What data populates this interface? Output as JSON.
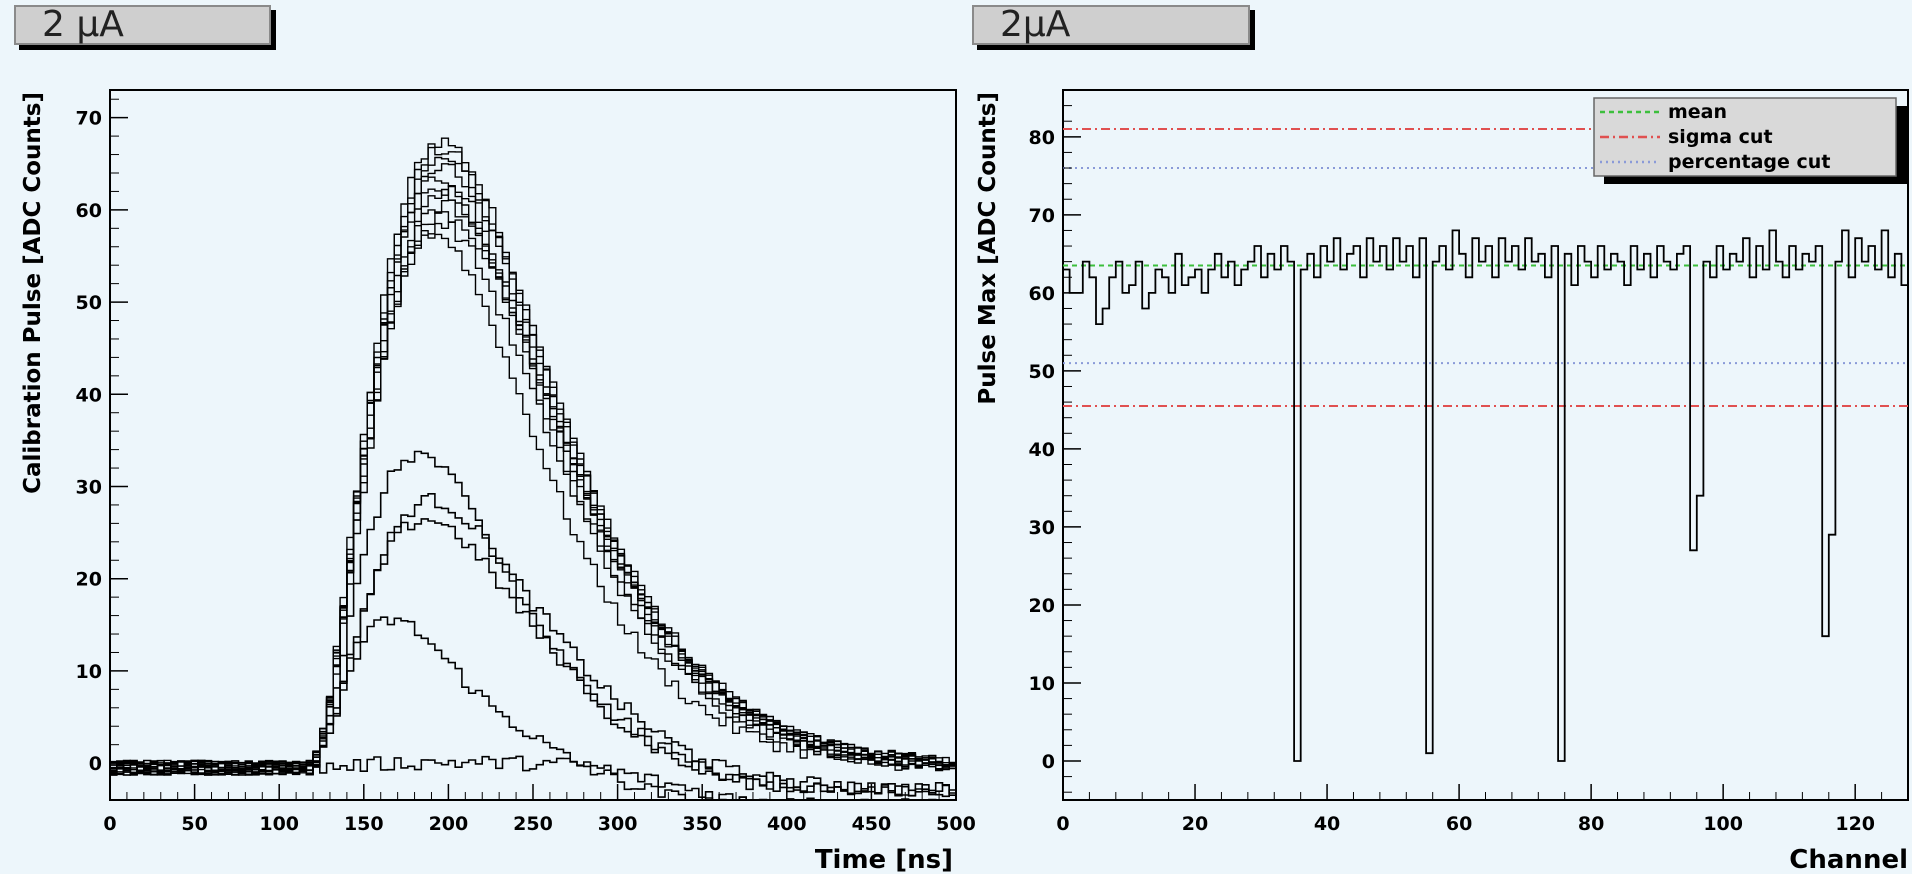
{
  "panels": {
    "left_label": "2 µA",
    "right_label": "2µA"
  },
  "chart_data": [
    {
      "type": "line",
      "title": "",
      "xlabel": "Time [ns]",
      "ylabel": "Calibration Pulse [ADC Counts]",
      "xlim": [
        0,
        500
      ],
      "ylim": [
        -4,
        73
      ],
      "xticks": [
        0,
        50,
        100,
        150,
        200,
        250,
        300,
        350,
        400,
        450,
        500
      ],
      "yticks": [
        0,
        10,
        20,
        30,
        40,
        50,
        60,
        70
      ],
      "grid": false,
      "line_color": "#000000",
      "series_description": "Overlaid calibration pulses (many channels). Bulk peaks ~58-68 ADC near 190 ns; a few low-amplitude channels; a few flat channels.",
      "pulse_model": {
        "baseline": -0.5,
        "onset_ns": 115,
        "peak_ns": 193
      },
      "series": [
        {
          "amplitude": 68
        },
        {
          "amplitude": 67
        },
        {
          "amplitude": 66
        },
        {
          "amplitude": 65
        },
        {
          "amplitude": 64
        },
        {
          "amplitude": 63
        },
        {
          "amplitude": 62
        },
        {
          "amplitude": 61
        },
        {
          "amplitude": 60
        },
        {
          "amplitude": 59
        },
        {
          "amplitude": 58
        },
        {
          "amplitude": 34,
          "peak_ns": 180
        },
        {
          "amplitude": 29,
          "peak_ns": 188
        },
        {
          "amplitude": 27,
          "peak_ns": 185
        },
        {
          "amplitude": 16,
          "peak_ns": 165
        },
        {
          "amplitude": 0.6,
          "peak_ns": 200
        }
      ]
    },
    {
      "type": "line",
      "title": "",
      "xlabel": "Channel",
      "ylabel": "Pulse Max [ADC Counts]",
      "xlim": [
        0,
        128
      ],
      "ylim": [
        -5,
        86
      ],
      "xticks": [
        0,
        20,
        40,
        60,
        80,
        100,
        120
      ],
      "yticks": [
        0,
        10,
        20,
        30,
        40,
        50,
        60,
        70,
        80
      ],
      "grid": false,
      "legend_position": "top-right",
      "legend": [
        {
          "label": "mean",
          "color": "#3cbf3c",
          "style": "dashed"
        },
        {
          "label": "sigma cut",
          "color": "#e05050",
          "style": "dash-dot"
        },
        {
          "label": "percentage cut",
          "color": "#8a9ad8",
          "style": "dotted"
        }
      ],
      "hlines": [
        {
          "name": "mean",
          "y": 63.5,
          "color": "#3cbf3c"
        },
        {
          "name": "sigma cut",
          "y": 81,
          "color": "#e05050"
        },
        {
          "name": "sigma cut",
          "y": 45.5,
          "color": "#e05050"
        },
        {
          "name": "percentage cut",
          "y": 76,
          "color": "#8a9ad8"
        },
        {
          "name": "percentage cut",
          "y": 51,
          "color": "#8a9ad8"
        }
      ],
      "values": [
        63,
        60,
        60,
        64,
        62,
        56,
        58,
        62,
        64,
        60,
        61,
        64,
        58,
        60,
        63,
        62,
        60,
        65,
        61,
        62,
        63,
        60,
        63,
        65,
        62,
        64,
        61,
        63,
        64,
        66,
        62,
        65,
        63,
        66,
        64,
        0,
        63,
        65,
        62,
        66,
        64,
        67,
        63,
        65,
        66,
        62,
        67,
        64,
        66,
        63,
        67,
        64,
        66,
        62,
        67,
        1,
        64,
        66,
        63,
        68,
        65,
        62,
        67,
        64,
        66,
        62,
        67,
        64,
        66,
        63,
        67,
        64,
        65,
        62,
        66,
        0,
        65,
        61,
        66,
        64,
        62,
        66,
        63,
        65,
        64,
        61,
        66,
        63,
        65,
        62,
        66,
        64,
        63,
        65,
        66,
        27,
        34,
        64,
        62,
        66,
        63,
        65,
        64,
        67,
        62,
        66,
        63,
        68,
        64,
        62,
        66,
        63,
        65,
        64,
        66,
        16,
        29,
        64,
        68,
        62,
        67,
        64,
        66,
        63,
        68,
        62,
        65,
        61
      ]
    }
  ]
}
